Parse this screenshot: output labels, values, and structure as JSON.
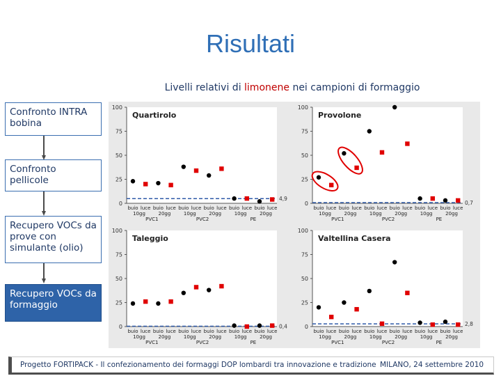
{
  "slide": {
    "title": "Risultati",
    "subtitle": {
      "before": "Livelli relativi di ",
      "highlight": "limonene",
      "after": " nei campioni di formaggio",
      "highlight_color": "#c00000"
    }
  },
  "sidebar": {
    "items": [
      {
        "label": "Confronto INTRA bobina",
        "active": false
      },
      {
        "label": "Confronto pellicole",
        "active": false
      },
      {
        "label": "Recupero VOCs da prove con simulante (olio)",
        "active": false
      },
      {
        "label": "Recupero VOCs da formaggio",
        "active": true
      }
    ],
    "active_color": "#2e63a8"
  },
  "footer": {
    "left": "Progetto FORTIPACK - Il confezionamento dei formaggi DOP lombardi tra innovazione e tradizione",
    "right": "MILANO, 24 settembre 2010"
  },
  "chart_data": [
    {
      "type": "scatter",
      "title": "Quartirolo",
      "ylim": [
        0,
        100
      ],
      "yticks": [
        0,
        25,
        50,
        75,
        100
      ],
      "categories": [
        "buio 10gg",
        "luce 10gg",
        "buio 20gg",
        "luce 20gg",
        "buio 10gg",
        "luce 10gg",
        "buio 20gg",
        "luce 20gg",
        "buio 10gg",
        "luce 10gg",
        "buio 20gg",
        "luce 20gg"
      ],
      "tick_top": [
        "buio",
        "luce",
        "buio",
        "luce",
        "buio",
        "luce",
        "buio",
        "luce",
        "buio",
        "luce",
        "buio",
        "luce"
      ],
      "tick_bottom": [
        "10gg",
        "",
        "20gg",
        "",
        "10gg",
        "",
        "20gg",
        "",
        "10gg",
        "",
        "20gg",
        ""
      ],
      "groups": [
        "PVC1",
        "PVC2",
        "PE"
      ],
      "series": [
        {
          "marker": "circle",
          "color": "#000000",
          "values": [
            23,
            null,
            21,
            null,
            38,
            null,
            29,
            null,
            5,
            null,
            2,
            null
          ]
        },
        {
          "marker": "square",
          "color": "#e00000",
          "values": [
            null,
            20,
            null,
            19,
            null,
            34,
            null,
            36,
            null,
            5,
            null,
            4
          ]
        }
      ],
      "reference_line": {
        "value": 4.9,
        "label": "4,9"
      },
      "highlighted": []
    },
    {
      "type": "scatter",
      "title": "Provolone",
      "ylim": [
        0,
        100
      ],
      "yticks": [
        0,
        25,
        50,
        75,
        100
      ],
      "categories": [
        "buio 10gg",
        "luce 10gg",
        "buio 20gg",
        "luce 20gg",
        "buio 10gg",
        "luce 10gg",
        "buio 20gg",
        "luce 20gg",
        "buio 10gg",
        "luce 10gg",
        "buio 20gg",
        "luce 20gg"
      ],
      "tick_top": [
        "buio",
        "luce",
        "buio",
        "luce",
        "buio",
        "luce",
        "buio",
        "luce",
        "buio",
        "luce",
        "buio",
        "luce"
      ],
      "tick_bottom": [
        "10gg",
        "",
        "20gg",
        "",
        "10gg",
        "",
        "20gg",
        "",
        "10gg",
        "",
        "20gg",
        ""
      ],
      "groups": [
        "PVC1",
        "PVC2",
        "PE"
      ],
      "series": [
        {
          "marker": "circle",
          "color": "#000000",
          "values": [
            27,
            null,
            52,
            null,
            75,
            null,
            100,
            null,
            5,
            null,
            3,
            null
          ]
        },
        {
          "marker": "square",
          "color": "#e00000",
          "values": [
            null,
            19,
            null,
            37,
            null,
            53,
            null,
            62,
            null,
            5,
            null,
            3
          ]
        }
      ],
      "reference_line": {
        "value": 0.7,
        "label": "0,7"
      },
      "highlighted": [
        0,
        1,
        2,
        3
      ]
    },
    {
      "type": "scatter",
      "title": "Taleggio",
      "ylim": [
        0,
        100
      ],
      "yticks": [
        0,
        25,
        50,
        75,
        100
      ],
      "categories": [
        "buio 10gg",
        "luce 10gg",
        "buio 20gg",
        "luce 20gg",
        "buio 10gg",
        "luce 10gg",
        "buio 20gg",
        "luce 20gg",
        "buio 10gg",
        "luce 10gg",
        "buio 20gg",
        "luce 20gg"
      ],
      "tick_top": [
        "buio",
        "luce",
        "buio",
        "luce",
        "buio",
        "luce",
        "buio",
        "luce",
        "buio",
        "luce",
        "buio",
        "luce"
      ],
      "tick_bottom": [
        "10gg",
        "",
        "20gg",
        "",
        "10gg",
        "",
        "20gg",
        "",
        "10gg",
        "",
        "20gg",
        ""
      ],
      "groups": [
        "PVC1",
        "PVC2",
        "PE"
      ],
      "series": [
        {
          "marker": "circle",
          "color": "#000000",
          "values": [
            24,
            null,
            24,
            null,
            35,
            null,
            38,
            null,
            1,
            null,
            1,
            null
          ]
        },
        {
          "marker": "square",
          "color": "#e00000",
          "values": [
            null,
            26,
            null,
            26,
            null,
            41,
            null,
            42,
            null,
            0,
            null,
            1
          ]
        }
      ],
      "reference_line": {
        "value": 0.4,
        "label": "0,4"
      },
      "highlighted": []
    },
    {
      "type": "scatter",
      "title": "Valtellina Casera",
      "ylim": [
        0,
        100
      ],
      "yticks": [
        0,
        25,
        50,
        75,
        100
      ],
      "categories": [
        "buio 10gg",
        "luce 10gg",
        "buio 20gg",
        "luce 20gg",
        "buio 10gg",
        "luce 10gg",
        "buio 20gg",
        "luce 20gg",
        "buio 10gg",
        "luce 10gg",
        "buio 20gg",
        "luce 20gg"
      ],
      "tick_top": [
        "buio",
        "luce",
        "buio",
        "luce",
        "buio",
        "luce",
        "buio",
        "luce",
        "buio",
        "luce",
        "buio",
        "luce"
      ],
      "tick_bottom": [
        "10gg",
        "",
        "20gg",
        "",
        "10gg",
        "",
        "20gg",
        "",
        "10gg",
        "",
        "20gg",
        ""
      ],
      "groups": [
        "PVC1",
        "PVC2",
        "PE"
      ],
      "series": [
        {
          "marker": "circle",
          "color": "#000000",
          "values": [
            20,
            null,
            25,
            null,
            37,
            null,
            67,
            null,
            4,
            null,
            5,
            null
          ]
        },
        {
          "marker": "square",
          "color": "#e00000",
          "values": [
            null,
            10,
            null,
            18,
            null,
            3,
            null,
            35,
            null,
            2,
            null,
            2
          ]
        }
      ],
      "reference_line": {
        "value": 2.8,
        "label": "2,8"
      },
      "highlighted": []
    }
  ]
}
